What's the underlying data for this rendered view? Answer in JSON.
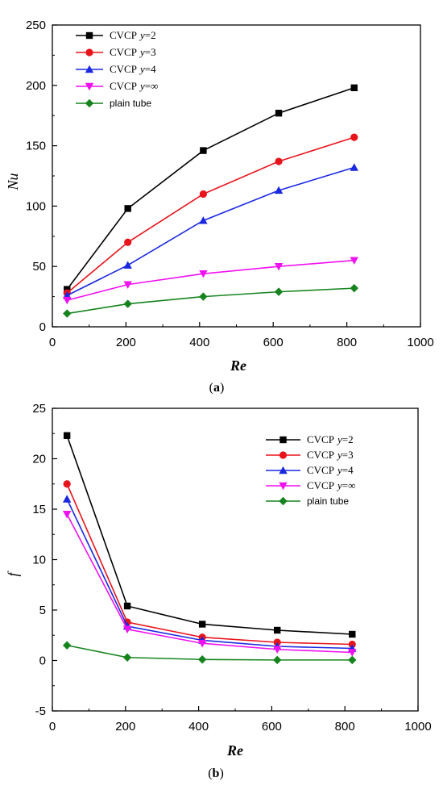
{
  "chart_data": [
    {
      "type": "line",
      "caption_open": "(",
      "caption_letter": "a",
      "caption_close": ")",
      "xlabel": "Re",
      "ylabel": "Nu",
      "xlim": [
        0,
        1000
      ],
      "ylim": [
        0,
        250
      ],
      "xticks": [
        "0",
        "200",
        "400",
        "600",
        "800",
        "1000"
      ],
      "yticks": [
        "0",
        "50",
        "100",
        "150",
        "200",
        "250"
      ],
      "grid": false,
      "legend_position": "top-left",
      "series": [
        {
          "name": "CVCP",
          "y_text": "y",
          "suffix": "=2",
          "color": "#000000",
          "marker": "square",
          "x": [
            40,
            205,
            410,
            615,
            820
          ],
          "y": [
            31,
            98,
            146,
            177,
            198
          ]
        },
        {
          "name": "CVCP",
          "y_text": "y",
          "suffix": "=3",
          "color": "#e8141c",
          "marker": "circle",
          "x": [
            40,
            205,
            410,
            615,
            820
          ],
          "y": [
            28,
            70,
            110,
            137,
            157
          ]
        },
        {
          "name": "CVCP",
          "y_text": "y",
          "suffix": "=4",
          "color": "#1a28e0",
          "marker": "triangle-up",
          "x": [
            40,
            205,
            410,
            615,
            820
          ],
          "y": [
            26,
            51,
            88,
            113,
            132
          ]
        },
        {
          "name": "CVCP",
          "y_text": "y",
          "suffix": "=∞",
          "color": "#f011f0",
          "marker": "triangle-down",
          "x": [
            40,
            205,
            410,
            615,
            820
          ],
          "y": [
            22,
            35,
            44,
            50,
            55
          ]
        },
        {
          "name": "plain tube",
          "y_text": "",
          "suffix": "",
          "color": "#16841e",
          "marker": "diamond",
          "x": [
            40,
            205,
            410,
            615,
            820
          ],
          "y": [
            11,
            19,
            25,
            29,
            32
          ]
        }
      ]
    },
    {
      "type": "line",
      "caption_open": "(",
      "caption_letter": "b",
      "caption_close": ")",
      "xlabel": "Re",
      "ylabel": "f",
      "xlim": [
        0,
        1000
      ],
      "ylim": [
        -5,
        25
      ],
      "xticks": [
        "0",
        "200",
        "400",
        "600",
        "800",
        "1000"
      ],
      "yticks": [
        "-5",
        "0",
        "5",
        "10",
        "15",
        "20",
        "25"
      ],
      "grid": false,
      "legend_position": "top-right",
      "series": [
        {
          "name": "CVCP",
          "y_text": "y",
          "suffix": "=2",
          "color": "#000000",
          "marker": "square",
          "x": [
            40,
            205,
            410,
            615,
            820
          ],
          "y": [
            22.3,
            5.4,
            3.6,
            3.0,
            2.6
          ]
        },
        {
          "name": "CVCP",
          "y_text": "y",
          "suffix": "=3",
          "color": "#e8141c",
          "marker": "circle",
          "x": [
            40,
            205,
            410,
            615,
            820
          ],
          "y": [
            17.5,
            3.8,
            2.3,
            1.8,
            1.6
          ]
        },
        {
          "name": "CVCP",
          "y_text": "y",
          "suffix": "=4",
          "color": "#1a28e0",
          "marker": "triangle-up",
          "x": [
            40,
            205,
            410,
            615,
            820
          ],
          "y": [
            16.0,
            3.4,
            2.0,
            1.4,
            1.2
          ]
        },
        {
          "name": "CVCP",
          "y_text": "y",
          "suffix": "=∞",
          "color": "#f011f0",
          "marker": "triangle-down",
          "x": [
            40,
            205,
            410,
            615,
            820
          ],
          "y": [
            14.5,
            3.1,
            1.7,
            1.1,
            0.8
          ]
        },
        {
          "name": "plain tube",
          "y_text": "",
          "suffix": "",
          "color": "#16841e",
          "marker": "diamond",
          "x": [
            40,
            205,
            410,
            615,
            820
          ],
          "y": [
            1.5,
            0.3,
            0.1,
            0.05,
            0.05
          ]
        }
      ]
    }
  ]
}
